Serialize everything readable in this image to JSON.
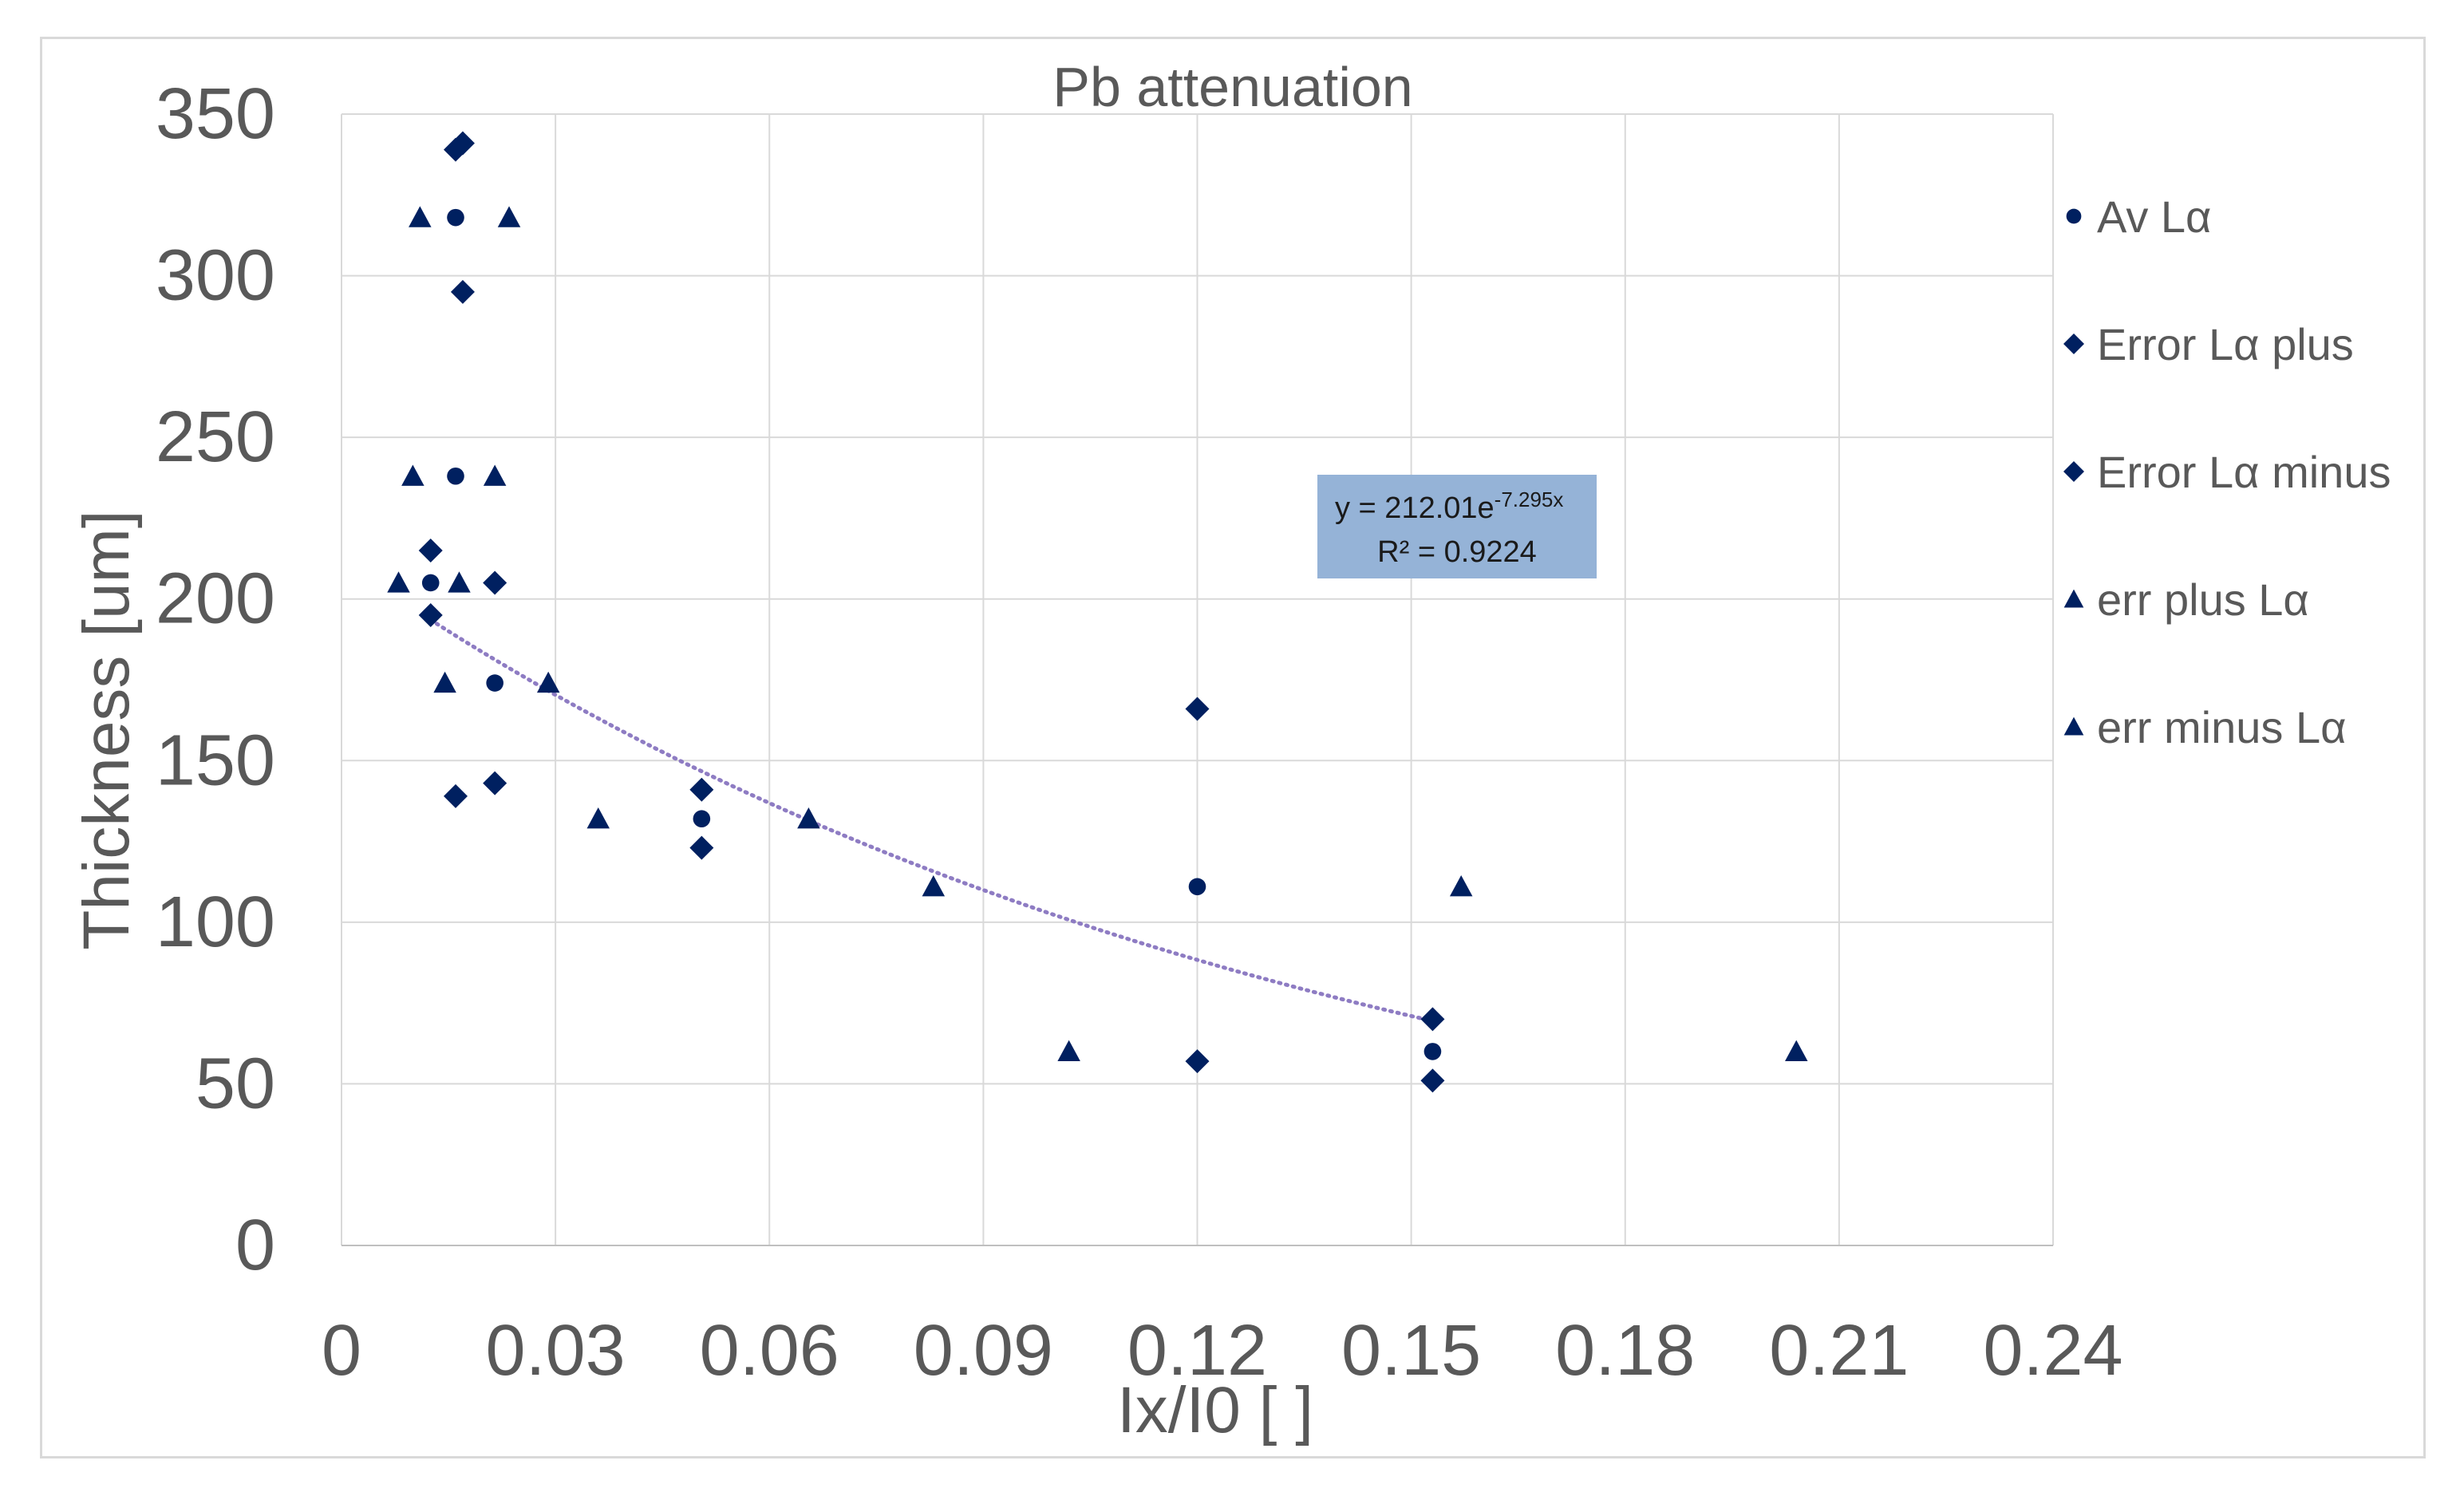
{
  "chart_data": {
    "type": "scatter",
    "title": "Pb attenuation",
    "xlabel": "Ix/I0 [ ]",
    "ylabel": "Thickness [um]",
    "xlim": [
      0,
      0.24
    ],
    "ylim": [
      0,
      350
    ],
    "xticks": [
      "0",
      "0.03",
      "0.06",
      "0.09",
      "0.12",
      "0.15",
      "0.18",
      "0.21",
      "0.24"
    ],
    "yticks": [
      "0",
      "50",
      "100",
      "150",
      "200",
      "250",
      "300",
      "350"
    ],
    "grid": true,
    "legend_position": "right",
    "series": [
      {
        "name": "Av Lα",
        "marker": "circle",
        "color": "#002060",
        "points": [
          [
            0.016,
            318
          ],
          [
            0.016,
            238
          ],
          [
            0.0125,
            205
          ],
          [
            0.0215,
            174
          ],
          [
            0.0505,
            132
          ],
          [
            0.12,
            111
          ],
          [
            0.153,
            60
          ]
        ]
      },
      {
        "name": "Error Lα plus",
        "marker": "diamond",
        "color": "#002060",
        "points": [
          [
            0.017,
            341
          ],
          [
            0.017,
            295
          ],
          [
            0.0125,
            215
          ],
          [
            0.0215,
            205
          ],
          [
            0.0215,
            143
          ],
          [
            0.0505,
            141
          ],
          [
            0.12,
            166
          ],
          [
            0.153,
            70
          ]
        ]
      },
      {
        "name": "Error Lα minus",
        "marker": "diamond",
        "color": "#002060",
        "points": [
          [
            0.016,
            339
          ],
          [
            0.0125,
            195
          ],
          [
            0.016,
            139
          ],
          [
            0.0505,
            123
          ],
          [
            0.12,
            57
          ],
          [
            0.153,
            51
          ]
        ]
      },
      {
        "name": "err plus Lα",
        "marker": "triangle",
        "color": "#002060",
        "points": [
          [
            0.011,
            318
          ],
          [
            0.01,
            238
          ],
          [
            0.008,
            205
          ],
          [
            0.0145,
            174
          ],
          [
            0.036,
            132
          ],
          [
            0.083,
            111
          ],
          [
            0.102,
            60
          ]
        ]
      },
      {
        "name": "err minus Lα",
        "marker": "triangle",
        "color": "#002060",
        "points": [
          [
            0.0235,
            318
          ],
          [
            0.0215,
            238
          ],
          [
            0.0165,
            205
          ],
          [
            0.029,
            174
          ],
          [
            0.0655,
            132
          ],
          [
            0.157,
            111
          ],
          [
            0.204,
            60
          ]
        ]
      }
    ],
    "trendline": {
      "type": "exponential",
      "color": "#8e7cc3",
      "equation_prefix": "y = 212.01e",
      "equation_exponent": "-7.295x",
      "r_squared": "R² = 0.9224",
      "a": 212.01,
      "b": -7.295,
      "x_range": [
        0.0125,
        0.153
      ],
      "label_bg": "#95b3d7"
    }
  }
}
